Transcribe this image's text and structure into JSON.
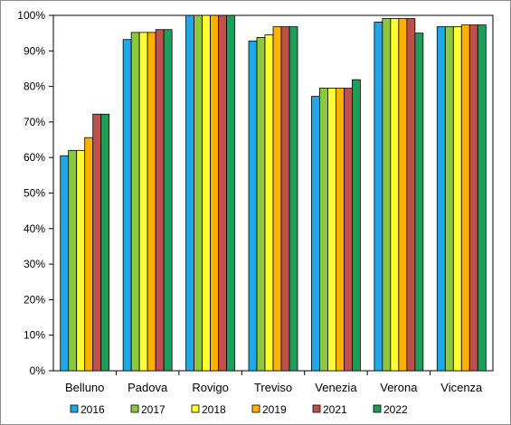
{
  "chart_data": {
    "type": "bar",
    "categories": [
      "Belluno",
      "Padova",
      "Rovigo",
      "Treviso",
      "Venezia",
      "Verona",
      "Vicenza"
    ],
    "series": [
      {
        "name": "2016",
        "color": "#1fa7e6",
        "values": [
          60.5,
          93.2,
          100,
          92.8,
          77.2,
          98.1,
          96.8
        ]
      },
      {
        "name": "2017",
        "color": "#8dc63f",
        "values": [
          62.0,
          95.2,
          100,
          93.8,
          79.5,
          99.1,
          96.8
        ]
      },
      {
        "name": "2018",
        "color": "#ffff33",
        "values": [
          62.0,
          95.2,
          100,
          94.5,
          79.5,
          99.1,
          96.8
        ]
      },
      {
        "name": "2019",
        "color": "#ffb000",
        "values": [
          65.6,
          95.2,
          100,
          96.8,
          79.5,
          99.1,
          97.3
        ]
      },
      {
        "name": "2021",
        "color": "#c0504d",
        "values": [
          72.2,
          96.0,
          100,
          96.8,
          79.5,
          99.1,
          97.3
        ]
      },
      {
        "name": "2022",
        "color": "#1f9e5a",
        "values": [
          72.2,
          96.0,
          100,
          96.8,
          81.9,
          95.0,
          97.3
        ]
      }
    ],
    "ylim": [
      0,
      100
    ],
    "y_tick_values": [
      0,
      10,
      20,
      30,
      40,
      50,
      60,
      70,
      80,
      90,
      100
    ],
    "y_tick_labels": [
      "0%",
      "10%",
      "20%",
      "30%",
      "40%",
      "50%",
      "60%",
      "70%",
      "80%",
      "90%",
      "100%"
    ],
    "title": "",
    "xlabel": "",
    "ylabel": "",
    "grid": false,
    "legend_position": "bottom"
  }
}
